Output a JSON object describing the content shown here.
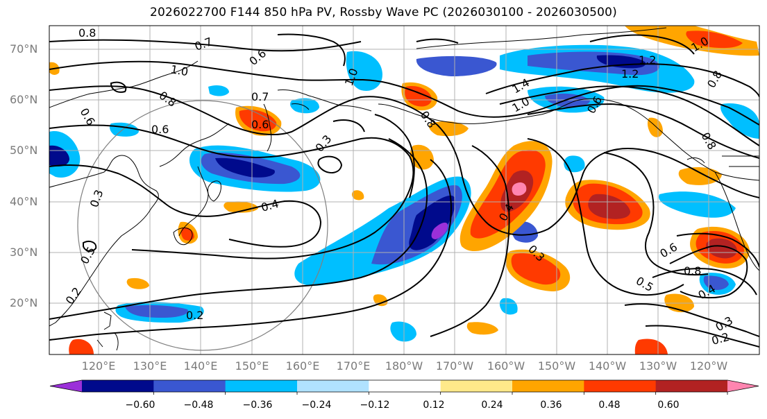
{
  "title": "2026022700 F144 850 hPa PV, Rossby Wave PC (2026030100 - 2026030500)",
  "latitude_labels": [
    "70°N",
    "60°N",
    "50°N",
    "40°N",
    "30°N",
    "20°N"
  ],
  "longitude_labels": [
    "120°E",
    "130°E",
    "140°E",
    "150°E",
    "160°E",
    "170°E",
    "180°W",
    "170°W",
    "160°W",
    "150°W",
    "140°W",
    "130°W",
    "120°W"
  ],
  "colorbar": {
    "ticks": [
      "−0.60",
      "−0.48",
      "−0.36",
      "−0.24",
      "−0.12",
      "0.12",
      "0.24",
      "0.36",
      "0.48",
      "0.60"
    ],
    "colors": [
      "#9b30d9",
      "#000a8c",
      "#3a57d1",
      "#00bfff",
      "#b0e2ff",
      "#ffffff",
      "#ffe98a",
      "#ffa500",
      "#ff3a00",
      "#b22222",
      "#ff85b0"
    ]
  },
  "contour_labels": [
    "0.8",
    "0.7",
    "0.6",
    "1.0",
    "0.8",
    "0.6",
    "0.7",
    "0.6",
    "0.6",
    "0.3",
    "0.4",
    "0.3",
    "0.5",
    "0.2",
    "0.2",
    "1.0",
    "0.8",
    "1.4",
    "1.0",
    "1.2",
    "1.2",
    "0.6",
    "0.8",
    "0.4",
    "0.3",
    "0.5",
    "0.6",
    "0.8",
    "0.4",
    "0.3",
    "0.2",
    "1.0",
    "0.8"
  ]
}
